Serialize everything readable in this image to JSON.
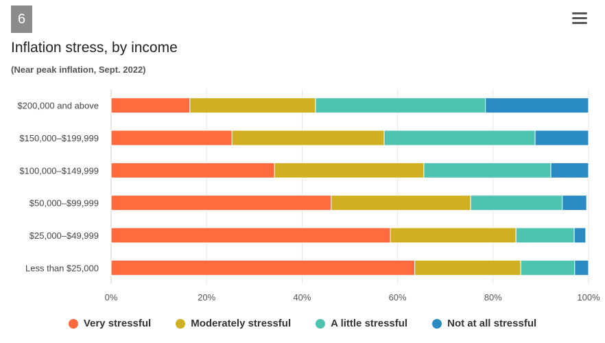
{
  "badge": "6",
  "menu_icon": "hamburger-menu-icon",
  "chart_data": {
    "type": "bar",
    "orientation": "horizontal",
    "stacked": true,
    "title": "Inflation stress, by income",
    "subtitle": "(Near peak inflation, Sept. 2022)",
    "categories": [
      "$200,000 and above",
      "$150,000–$199,999",
      "$100,000–$149,999",
      "$50,000–$99,999",
      "$25,000–$49,999",
      "Less than $25,000"
    ],
    "series": [
      {
        "name": "Very stressful",
        "color": "#FF6B3D",
        "values": [
          16.5,
          25.3,
          34.2,
          46.1,
          58.5,
          63.6
        ]
      },
      {
        "name": "Moderately stressful",
        "color": "#D0B022",
        "values": [
          26.3,
          31.9,
          31.3,
          29.2,
          26.3,
          22.2
        ]
      },
      {
        "name": "A little stressful",
        "color": "#4EC4B0",
        "values": [
          35.6,
          31.6,
          26.6,
          19.2,
          12.2,
          11.3
        ]
      },
      {
        "name": "Not at all stressful",
        "color": "#2A8BC3",
        "values": [
          21.6,
          11.2,
          7.9,
          5.1,
          2.4,
          2.9
        ]
      }
    ],
    "xlim": [
      0,
      100
    ],
    "xticks": [
      "0%",
      "20%",
      "40%",
      "60%",
      "80%",
      "100%"
    ],
    "grid": true,
    "legend": "bottom"
  }
}
